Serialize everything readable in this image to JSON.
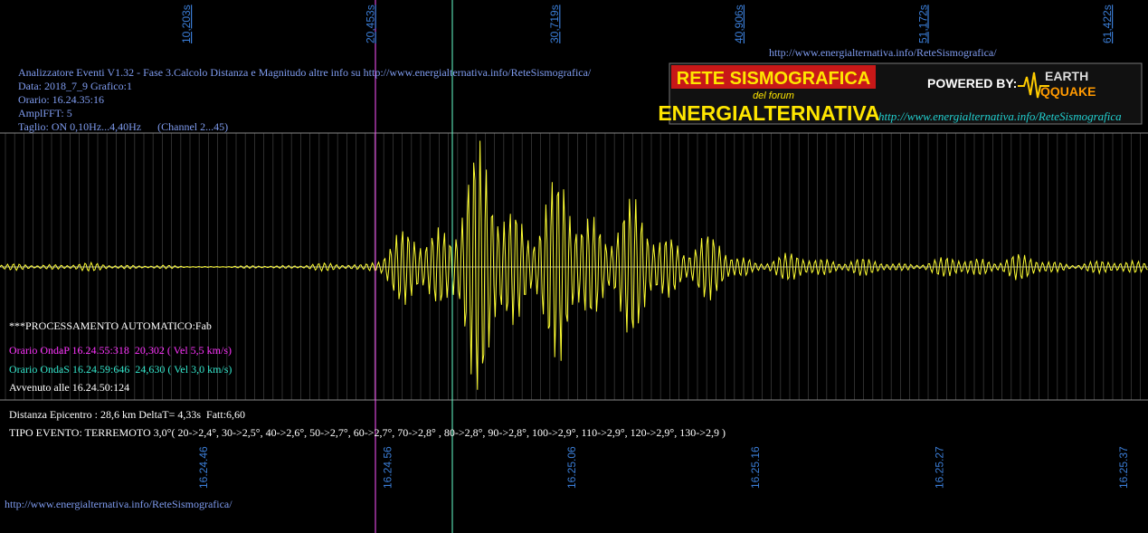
{
  "top_time_labels": [
    "10,203s",
    "20,453s",
    "30,719s",
    "40,906s",
    "51,172s",
    "61,422s"
  ],
  "bottom_time_labels": [
    "16.24.46",
    "16.24.56",
    "16.25.06",
    "16.25.16",
    "16.25.27",
    "16.25.37"
  ],
  "header": {
    "url_top": "http://www.energialternativa.info/ReteSismografica/",
    "lines": [
      "Analizzatore Eventi V1.32 - Fase 3.Calcolo Distanza e Magnitudo altre info su http://www.energialternativa.info/ReteSismografica/",
      "Data: 2018_7_9 Grafico:1",
      "Orario: 16.24.35:16",
      "AmplFFT: 5",
      "Taglio: ON 0,10Hz...4,40Hz      (Channel 2...45)"
    ]
  },
  "logo": {
    "title": "RETE SISMOGRAFICA",
    "subtitle": "del forum",
    "name": "ENERGIALTERNATIVA",
    "powered": "POWERED BY:",
    "brand_top": "EARTH",
    "brand_bottom": "QQUAKE",
    "url": "http://www.energialternativa.info/ReteSismografica"
  },
  "processing": {
    "title": "***PROCESSAMENTO AUTOMATICO:Fab",
    "wave_p": "Orario OndaP 16.24.55:318  20,302 ( Vel 5,5 km/s)",
    "wave_s": "Orario OndaS 16.24.59:646  24,630 ( Vel 3,0 km/s)",
    "occurred": "Avvenuto alle 16.24.50:124",
    "distance": "Distanza Epicentro : 28,6 km DeltaT= 4,33s  Fatt:6,60",
    "event_type": "TIPO EVENTO: TERREMOTO 3,0°( 20->2,4°, 30->2,5°, 40->2,6°, 50->2,7°, 60->2,7°, 70->2,8° , 80->2,8°, 90->2,8°, 100->2,9°, 110->2,9°, 120->2,9°, 130->2,9 )"
  },
  "footer_url": "http://www.energialternativa.info/ReteSismografica/"
}
